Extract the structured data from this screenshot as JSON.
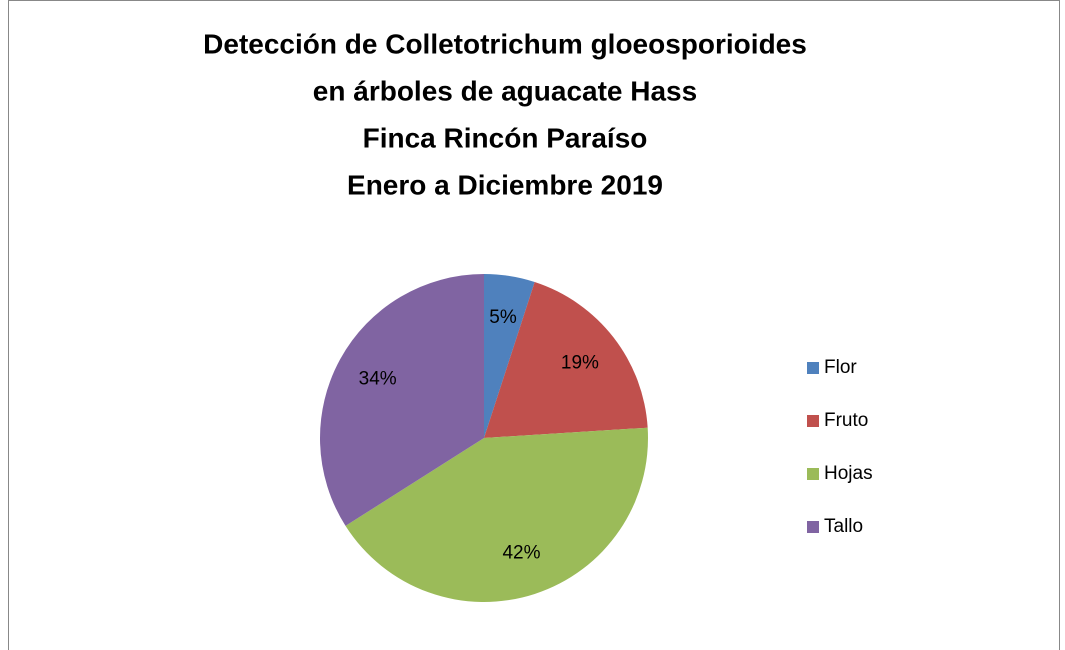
{
  "chart_data": {
    "type": "pie",
    "title": [
      "Detección de Colletotrichum gloeosporioides",
      "en árboles de aguacate Hass",
      "Finca Rincón Paraíso",
      "Enero a Diciembre 2019"
    ],
    "categories": [
      "Flor",
      "Fruto",
      "Hojas",
      "Tallo"
    ],
    "values": [
      5,
      19,
      42,
      34
    ],
    "value_labels": [
      "5%",
      "19%",
      "42%",
      "34%"
    ],
    "colors": [
      "#4f81bd",
      "#c0504d",
      "#9bbb59",
      "#8064a2"
    ],
    "legend": "right"
  }
}
